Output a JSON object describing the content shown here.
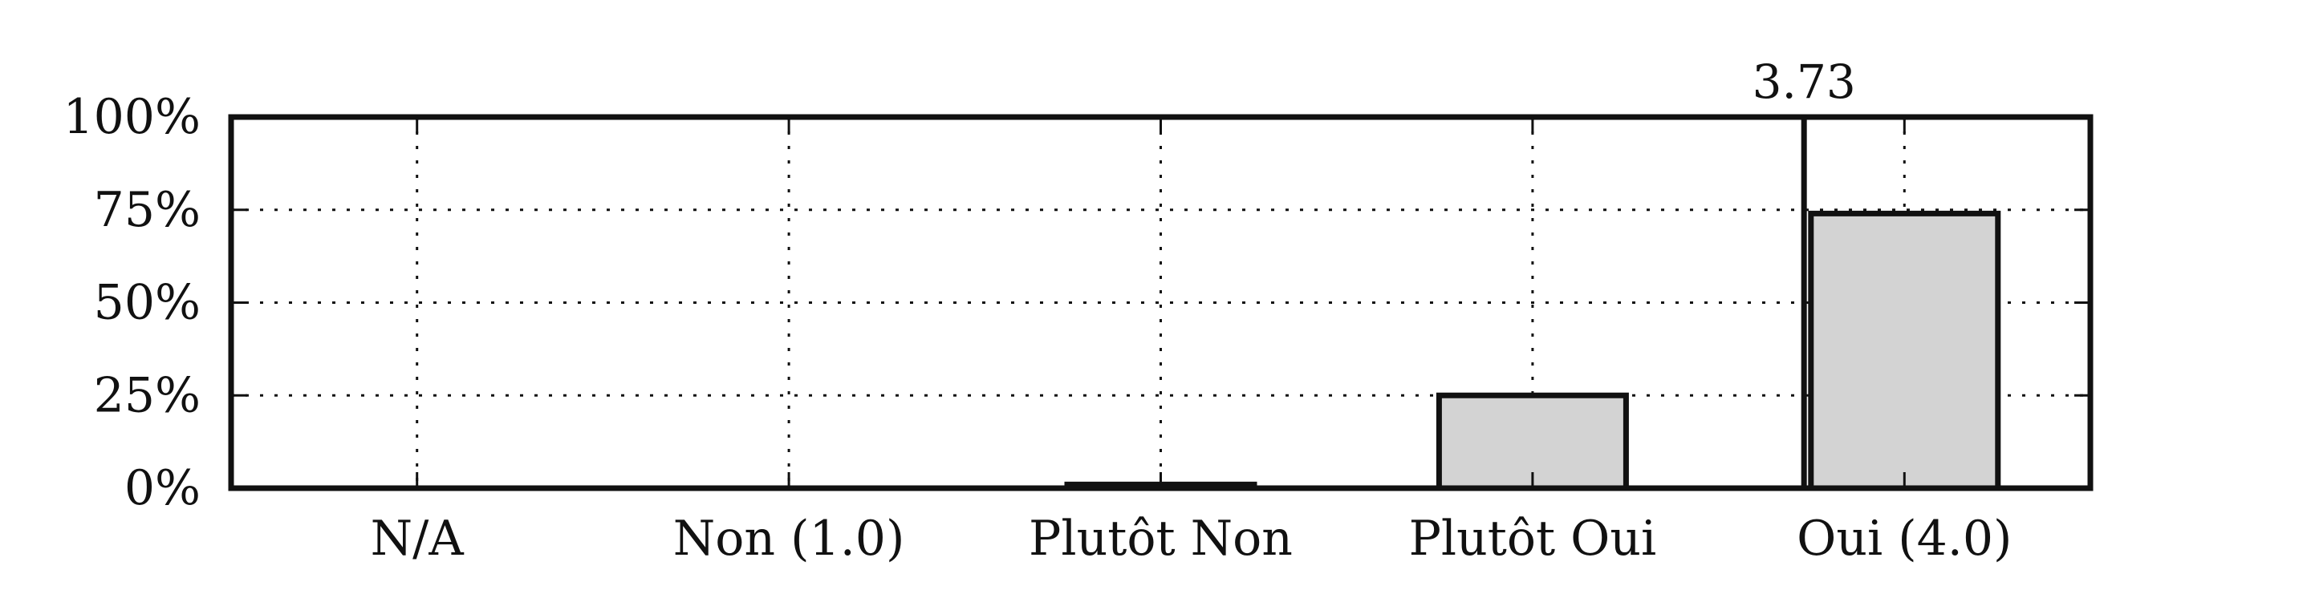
{
  "chart_data": {
    "type": "bar",
    "categories": [
      "N/A",
      "Non (1.0)",
      "Plutôt Non",
      "Plutôt Oui",
      "Oui (4.0)"
    ],
    "values": [
      0,
      0,
      1,
      25,
      74
    ],
    "value_unit": "%",
    "ylim": [
      0,
      100
    ],
    "yticks": [
      "0%",
      "25%",
      "50%",
      "75%",
      "100%"
    ],
    "ytick_values": [
      0,
      25,
      50,
      75,
      100
    ],
    "grid": true,
    "bar_color": "#d3d3d3",
    "bar_edge_color": "#111111",
    "annotation": {
      "label": "3.73",
      "x_value": 3.73
    }
  }
}
